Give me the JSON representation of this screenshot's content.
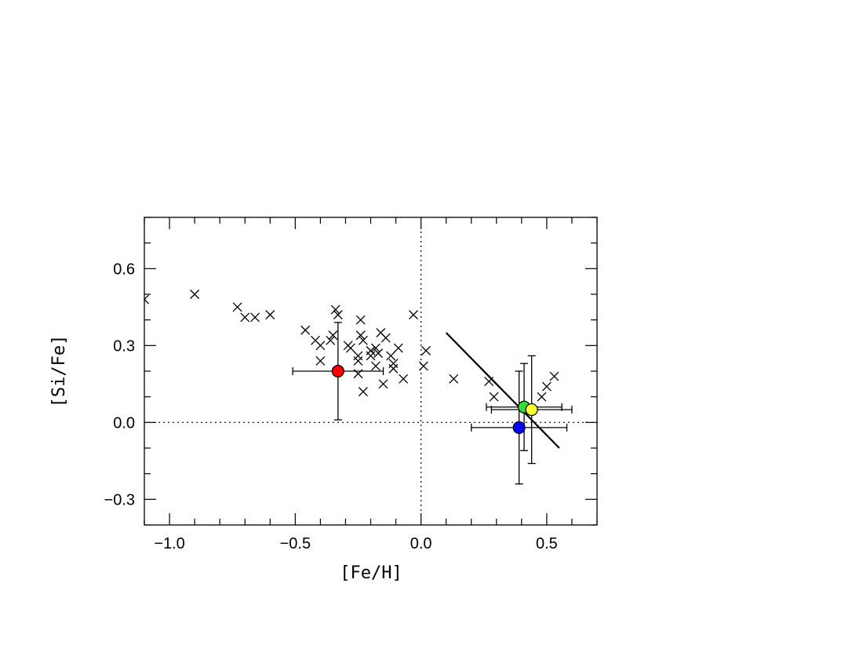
{
  "chart_data": {
    "type": "scatter",
    "xlabel": "[Fe/H]",
    "ylabel": "[Si/Fe]",
    "xlim": [
      -1.1,
      0.7
    ],
    "ylim": [
      -0.4,
      0.8
    ],
    "x_ticks": [
      -1.0,
      -0.5,
      0.0,
      0.5
    ],
    "x_tick_labels": [
      "−1.0",
      "−0.5",
      "0.0",
      "0.5"
    ],
    "y_ticks": [
      -0.3,
      0.0,
      0.3,
      0.6
    ],
    "y_tick_labels": [
      "−0.3",
      "0.0",
      "0.3",
      "0.6"
    ],
    "x_minor_step": 0.1,
    "y_minor_step": 0.1,
    "reference_lines": {
      "x": 0.0,
      "y": 0.0,
      "style": "dotted"
    },
    "comparison_stars": {
      "marker": "x",
      "points": [
        [
          -1.1,
          0.48
        ],
        [
          -0.9,
          0.5
        ],
        [
          -0.73,
          0.45
        ],
        [
          -0.7,
          0.41
        ],
        [
          -0.66,
          0.41
        ],
        [
          -0.6,
          0.42
        ],
        [
          -0.46,
          0.36
        ],
        [
          -0.42,
          0.32
        ],
        [
          -0.4,
          0.3
        ],
        [
          -0.4,
          0.24
        ],
        [
          -0.36,
          0.32
        ],
        [
          -0.35,
          0.34
        ],
        [
          -0.34,
          0.44
        ],
        [
          -0.33,
          0.42
        ],
        [
          -0.29,
          0.3
        ],
        [
          -0.28,
          0.29
        ],
        [
          -0.25,
          0.26
        ],
        [
          -0.25,
          0.24
        ],
        [
          -0.25,
          0.19
        ],
        [
          -0.24,
          0.4
        ],
        [
          -0.24,
          0.34
        ],
        [
          -0.23,
          0.32
        ],
        [
          -0.23,
          0.12
        ],
        [
          -0.2,
          0.28
        ],
        [
          -0.2,
          0.26
        ],
        [
          -0.18,
          0.29
        ],
        [
          -0.18,
          0.22
        ],
        [
          -0.17,
          0.27
        ],
        [
          -0.16,
          0.35
        ],
        [
          -0.15,
          0.15
        ],
        [
          -0.14,
          0.33
        ],
        [
          -0.12,
          0.26
        ],
        [
          -0.11,
          0.23
        ],
        [
          -0.11,
          0.21
        ],
        [
          -0.09,
          0.29
        ],
        [
          -0.07,
          0.17
        ],
        [
          -0.03,
          0.42
        ],
        [
          0.01,
          0.22
        ],
        [
          0.02,
          0.28
        ],
        [
          0.13,
          0.17
        ],
        [
          0.27,
          0.16
        ],
        [
          0.29,
          0.1
        ],
        [
          0.48,
          0.1
        ],
        [
          0.5,
          0.14
        ],
        [
          0.53,
          0.18
        ]
      ]
    },
    "highlighted_points": [
      {
        "x": -0.33,
        "y": 0.2,
        "x_err": 0.18,
        "y_err": 0.19,
        "color": "#ff0000"
      },
      {
        "x": 0.41,
        "y": 0.06,
        "x_err": 0.15,
        "y_err": 0.17,
        "color": "#33dd33"
      },
      {
        "x": 0.44,
        "y": 0.05,
        "x_err": 0.16,
        "y_err": 0.21,
        "color": "#ffff33"
      },
      {
        "x": 0.39,
        "y": -0.02,
        "x_err": 0.19,
        "y_err": 0.22,
        "color": "#0000ff"
      }
    ],
    "fit_line": {
      "x": [
        0.1,
        0.55
      ],
      "y": [
        0.35,
        -0.1
      ]
    },
    "grid": false,
    "legend": "none"
  }
}
